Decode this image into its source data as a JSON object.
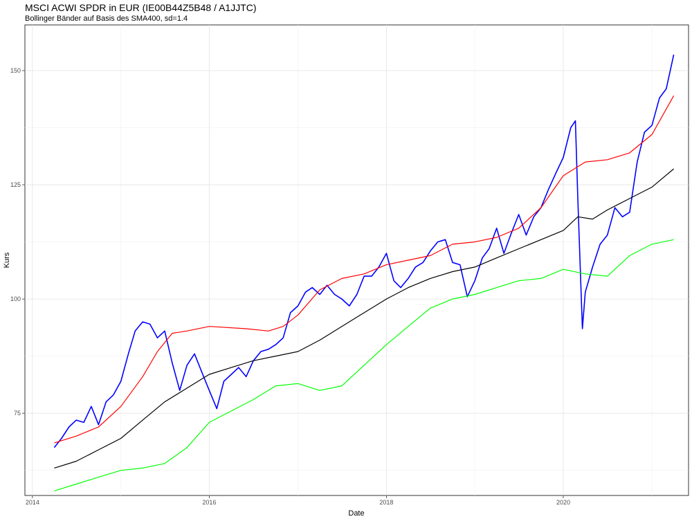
{
  "chart_data": {
    "type": "line",
    "title": "MSCI ACWI SPDR in EUR (IE00B44Z5B48 / A1JJTC)",
    "subtitle": "Bollinger Bänder auf Basis des SMA400, sd=1.4",
    "xlabel": "Date",
    "ylabel": "Kurs",
    "xlim": [
      "2013-12-01",
      "2021-06-01"
    ],
    "ylim": [
      57,
      160
    ],
    "x_ticks": [
      {
        "value": "2014-01-01",
        "label": "2014"
      },
      {
        "value": "2016-01-01",
        "label": "2016"
      },
      {
        "value": "2018-01-01",
        "label": "2018"
      },
      {
        "value": "2020-01-01",
        "label": "2020"
      }
    ],
    "y_ticks": [
      75,
      100,
      125,
      150
    ],
    "grid": true,
    "legend": "none",
    "series": [
      {
        "color": "#0000ff",
        "stroke_width": 1.6,
        "points": [
          [
            "2014-04-01",
            67.5
          ],
          [
            "2014-05-01",
            69.5
          ],
          [
            "2014-06-01",
            72.0
          ],
          [
            "2014-07-01",
            73.5
          ],
          [
            "2014-08-01",
            73.0
          ],
          [
            "2014-09-01",
            76.5
          ],
          [
            "2014-10-01",
            72.5
          ],
          [
            "2014-11-01",
            77.5
          ],
          [
            "2014-12-01",
            79.0
          ],
          [
            "2015-01-01",
            82.0
          ],
          [
            "2015-02-01",
            88.0
          ],
          [
            "2015-03-01",
            93.0
          ],
          [
            "2015-04-01",
            95.0
          ],
          [
            "2015-05-01",
            94.5
          ],
          [
            "2015-06-01",
            91.5
          ],
          [
            "2015-07-01",
            93.0
          ],
          [
            "2015-08-01",
            86.0
          ],
          [
            "2015-09-01",
            80.0
          ],
          [
            "2015-10-01",
            85.5
          ],
          [
            "2015-11-01",
            88.0
          ],
          [
            "2015-12-01",
            84.0
          ],
          [
            "2016-01-01",
            80.0
          ],
          [
            "2016-02-01",
            76.0
          ],
          [
            "2016-03-01",
            82.0
          ],
          [
            "2016-04-01",
            83.5
          ],
          [
            "2016-05-01",
            85.0
          ],
          [
            "2016-06-01",
            83.0
          ],
          [
            "2016-07-01",
            86.5
          ],
          [
            "2016-08-01",
            88.5
          ],
          [
            "2016-09-01",
            89.0
          ],
          [
            "2016-10-01",
            90.0
          ],
          [
            "2016-11-01",
            91.5
          ],
          [
            "2016-12-01",
            97.0
          ],
          [
            "2017-01-01",
            98.5
          ],
          [
            "2017-02-01",
            101.5
          ],
          [
            "2017-03-01",
            102.5
          ],
          [
            "2017-04-01",
            101.0
          ],
          [
            "2017-05-01",
            103.0
          ],
          [
            "2017-06-01",
            101.0
          ],
          [
            "2017-07-01",
            100.0
          ],
          [
            "2017-08-01",
            98.5
          ],
          [
            "2017-09-01",
            101.0
          ],
          [
            "2017-10-01",
            105.0
          ],
          [
            "2017-11-01",
            105.0
          ],
          [
            "2017-12-01",
            107.0
          ],
          [
            "2018-01-01",
            110.0
          ],
          [
            "2018-02-01",
            104.0
          ],
          [
            "2018-03-01",
            102.5
          ],
          [
            "2018-04-01",
            104.5
          ],
          [
            "2018-05-01",
            107.0
          ],
          [
            "2018-06-01",
            108.0
          ],
          [
            "2018-07-01",
            110.5
          ],
          [
            "2018-08-01",
            112.5
          ],
          [
            "2018-09-01",
            113.0
          ],
          [
            "2018-10-01",
            108.0
          ],
          [
            "2018-11-01",
            107.5
          ],
          [
            "2018-12-01",
            100.5
          ],
          [
            "2019-01-01",
            104.0
          ],
          [
            "2019-02-01",
            109.0
          ],
          [
            "2019-03-01",
            111.0
          ],
          [
            "2019-04-01",
            115.5
          ],
          [
            "2019-05-01",
            110.0
          ],
          [
            "2019-06-01",
            114.5
          ],
          [
            "2019-07-01",
            118.5
          ],
          [
            "2019-08-01",
            114.0
          ],
          [
            "2019-09-01",
            118.0
          ],
          [
            "2019-10-01",
            120.0
          ],
          [
            "2019-11-01",
            124.0
          ],
          [
            "2019-12-01",
            127.5
          ],
          [
            "2020-01-01",
            131.0
          ],
          [
            "2020-02-01",
            137.5
          ],
          [
            "2020-02-20",
            139.0
          ],
          [
            "2020-03-01",
            122.0
          ],
          [
            "2020-03-20",
            93.5
          ],
          [
            "2020-04-01",
            101.5
          ],
          [
            "2020-05-01",
            107.0
          ],
          [
            "2020-06-01",
            112.0
          ],
          [
            "2020-07-01",
            114.0
          ],
          [
            "2020-08-01",
            120.0
          ],
          [
            "2020-09-01",
            118.0
          ],
          [
            "2020-10-01",
            119.0
          ],
          [
            "2020-11-01",
            130.0
          ],
          [
            "2020-12-01",
            136.5
          ],
          [
            "2021-01-01",
            138.0
          ],
          [
            "2021-02-01",
            144.0
          ],
          [
            "2021-03-01",
            146.0
          ],
          [
            "2021-04-01",
            153.5
          ]
        ]
      },
      {
        "color": "#ff0000",
        "stroke_width": 1.2,
        "points": [
          [
            "2014-04-01",
            68.5
          ],
          [
            "2014-07-01",
            70.0
          ],
          [
            "2014-10-01",
            72.0
          ],
          [
            "2015-01-01",
            76.5
          ],
          [
            "2015-04-01",
            83.0
          ],
          [
            "2015-06-01",
            88.5
          ],
          [
            "2015-08-01",
            92.5
          ],
          [
            "2015-10-01",
            93.0
          ],
          [
            "2016-01-01",
            94.0
          ],
          [
            "2016-06-01",
            93.5
          ],
          [
            "2016-09-01",
            93.0
          ],
          [
            "2016-11-01",
            94.0
          ],
          [
            "2017-01-01",
            96.5
          ],
          [
            "2017-04-01",
            102.0
          ],
          [
            "2017-07-01",
            104.5
          ],
          [
            "2017-10-01",
            105.5
          ],
          [
            "2018-01-01",
            107.5
          ],
          [
            "2018-04-01",
            108.5
          ],
          [
            "2018-07-01",
            109.5
          ],
          [
            "2018-10-01",
            112.0
          ],
          [
            "2019-01-01",
            112.5
          ],
          [
            "2019-04-01",
            113.5
          ],
          [
            "2019-07-01",
            115.5
          ],
          [
            "2019-10-01",
            120.0
          ],
          [
            "2020-01-01",
            127.0
          ],
          [
            "2020-04-01",
            130.0
          ],
          [
            "2020-07-01",
            130.5
          ],
          [
            "2020-10-01",
            132.0
          ],
          [
            "2021-01-01",
            136.0
          ],
          [
            "2021-04-01",
            144.5
          ]
        ]
      },
      {
        "color": "#000000",
        "stroke_width": 1.2,
        "points": [
          [
            "2014-04-01",
            63.0
          ],
          [
            "2014-07-01",
            64.5
          ],
          [
            "2014-10-01",
            67.0
          ],
          [
            "2015-01-01",
            69.5
          ],
          [
            "2015-04-01",
            73.5
          ],
          [
            "2015-07-01",
            77.5
          ],
          [
            "2015-10-01",
            80.5
          ],
          [
            "2016-01-01",
            83.5
          ],
          [
            "2016-04-01",
            85.0
          ],
          [
            "2016-07-01",
            86.5
          ],
          [
            "2016-10-01",
            87.5
          ],
          [
            "2017-01-01",
            88.5
          ],
          [
            "2017-04-01",
            91.0
          ],
          [
            "2017-07-01",
            94.0
          ],
          [
            "2017-10-01",
            97.0
          ],
          [
            "2018-01-01",
            100.0
          ],
          [
            "2018-04-01",
            102.5
          ],
          [
            "2018-07-01",
            104.5
          ],
          [
            "2018-10-01",
            106.0
          ],
          [
            "2019-01-01",
            107.0
          ],
          [
            "2019-04-01",
            109.0
          ],
          [
            "2019-07-01",
            111.0
          ],
          [
            "2019-10-01",
            113.0
          ],
          [
            "2020-01-01",
            115.0
          ],
          [
            "2020-03-01",
            118.0
          ],
          [
            "2020-05-01",
            117.5
          ],
          [
            "2020-07-01",
            119.5
          ],
          [
            "2020-10-01",
            122.0
          ],
          [
            "2021-01-01",
            124.5
          ],
          [
            "2021-04-01",
            128.5
          ]
        ]
      },
      {
        "color": "#00ff00",
        "stroke_width": 1.2,
        "points": [
          [
            "2014-04-01",
            58.0
          ],
          [
            "2014-07-01",
            59.5
          ],
          [
            "2014-10-01",
            61.0
          ],
          [
            "2015-01-01",
            62.5
          ],
          [
            "2015-04-01",
            63.0
          ],
          [
            "2015-07-01",
            64.0
          ],
          [
            "2015-10-01",
            67.5
          ],
          [
            "2016-01-01",
            73.0
          ],
          [
            "2016-04-01",
            75.5
          ],
          [
            "2016-07-01",
            78.0
          ],
          [
            "2016-10-01",
            81.0
          ],
          [
            "2017-01-01",
            81.5
          ],
          [
            "2017-04-01",
            80.0
          ],
          [
            "2017-07-01",
            81.0
          ],
          [
            "2017-10-01",
            85.5
          ],
          [
            "2018-01-01",
            90.0
          ],
          [
            "2018-04-01",
            94.0
          ],
          [
            "2018-07-01",
            98.0
          ],
          [
            "2018-10-01",
            100.0
          ],
          [
            "2019-01-01",
            101.0
          ],
          [
            "2019-04-01",
            102.5
          ],
          [
            "2019-07-01",
            104.0
          ],
          [
            "2019-10-01",
            104.5
          ],
          [
            "2020-01-01",
            106.5
          ],
          [
            "2020-04-01",
            105.5
          ],
          [
            "2020-07-01",
            105.0
          ],
          [
            "2020-10-01",
            109.5
          ],
          [
            "2021-01-01",
            112.0
          ],
          [
            "2021-04-01",
            113.0
          ]
        ]
      }
    ]
  }
}
